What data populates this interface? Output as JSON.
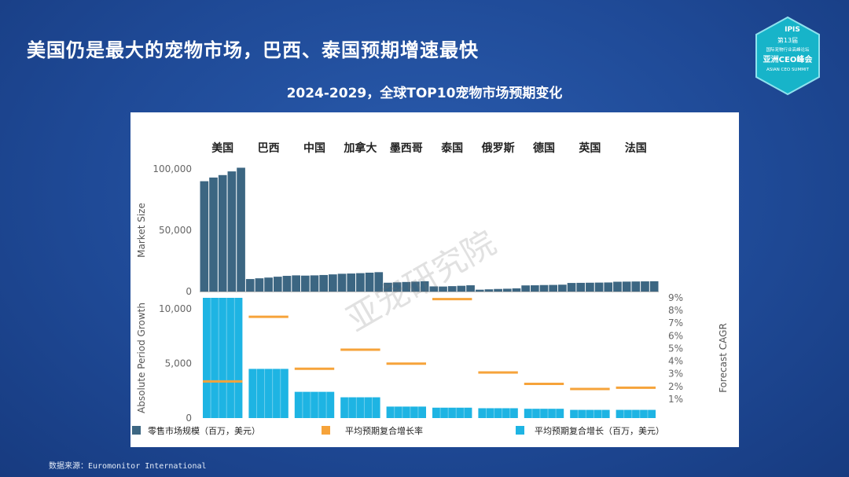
{
  "headline": "美国仍是最大的宠物市场，巴西、泰国预期增速最快",
  "logo": {
    "line1": "IPIS",
    "line2": "第13届",
    "line3": "国际宠物行业高峰论坛",
    "line4": "亚洲CEO峰会",
    "line5": "ASIAN CEO SUMMIT"
  },
  "watermark": "亚宠研究院",
  "source": "数据来源：Euromonitor International",
  "colors": {
    "market": "#3c6682",
    "growth": "#1eb4e3",
    "cagr": "#f6a33a",
    "background": "#1f4a97"
  },
  "chart_data": {
    "title": "2024-2029，全球TOP10宠物市场预期变化",
    "type": "bar",
    "categories": [
      "美国",
      "巴西",
      "中国",
      "加拿大",
      "墨西哥",
      "泰国",
      "俄罗斯",
      "德国",
      "英国",
      "法国"
    ],
    "market_size": {
      "ylabel": "Market Size",
      "ylim": [
        0,
        100000
      ],
      "ticks": [
        "100,000",
        "50,000",
        "0"
      ],
      "tick_values": [
        100000,
        50000,
        0
      ],
      "series_name": "零售市场规模（百万，美元）",
      "years_per_country": 5,
      "values": [
        [
          90000,
          93000,
          95000,
          98000,
          101000
        ],
        [
          10200,
          10800,
          11400,
          12100,
          12800
        ],
        [
          13200,
          13000,
          13200,
          13500,
          14000
        ],
        [
          14500,
          14700,
          15000,
          15400,
          15800
        ],
        [
          7200,
          7500,
          7800,
          8100,
          8400
        ],
        [
          4200,
          4100,
          4400,
          4700,
          5100
        ],
        [
          1500,
          1800,
          2100,
          2300,
          2600
        ],
        [
          5000,
          5100,
          5300,
          5400,
          5600
        ],
        [
          7000,
          7100,
          7200,
          7300,
          7400
        ],
        [
          8000,
          8100,
          8200,
          8300,
          8400
        ]
      ]
    },
    "growth": {
      "ylabel": "Absolute Period Growth",
      "ylim": [
        0,
        11000
      ],
      "ticks": [
        "10,000",
        "5,000",
        "0"
      ],
      "tick_values": [
        10000,
        5000,
        0
      ],
      "series_name": "平均预期复合增长（百万，美元）",
      "values": [
        11000,
        4500,
        2400,
        1900,
        1050,
        950,
        900,
        850,
        750,
        750
      ]
    },
    "cagr": {
      "ylabel": "Forecast CAGR",
      "ylim": [
        0,
        9
      ],
      "ticks": [
        "9%",
        "8%",
        "7%",
        "6%",
        "5%",
        "4%",
        "3%",
        "2%",
        "1%"
      ],
      "tick_values": [
        9,
        8,
        7,
        6,
        5,
        4,
        3,
        2,
        1
      ],
      "series_name": "平均预期复合增长率",
      "values": [
        2.4,
        7.5,
        3.4,
        4.9,
        3.8,
        8.9,
        3.1,
        2.2,
        1.8,
        1.9
      ]
    },
    "legend_position": "bottom"
  }
}
